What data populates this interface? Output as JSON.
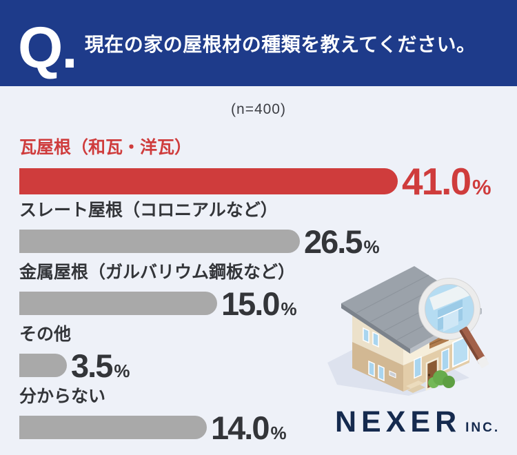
{
  "header": {
    "q_mark": "Q.",
    "question": "現在の家の屋根材の種類を教えてください。"
  },
  "survey": {
    "sample_size": "(n=400)"
  },
  "chart_data": {
    "type": "bar",
    "orientation": "horizontal",
    "title": "現在の家の屋根材の種類を教えてください。",
    "sample_size_label": "(n=400)",
    "n": 400,
    "unit": "%",
    "categories": [
      "瓦屋根（和瓦・洋瓦）",
      "スレート屋根（コロニアルなど）",
      "金属屋根（ガルバリウム鋼板など）",
      "その他",
      "分からない"
    ],
    "values": [
      41.0,
      26.5,
      15.0,
      3.5,
      14.0
    ],
    "value_labels": [
      "41.0",
      "26.5",
      "15.0",
      "3.5",
      "14.0"
    ],
    "bar_pixel_widths": [
      549,
      407,
      287,
      69,
      272
    ],
    "highlight_index": 0,
    "colors": {
      "highlight_bar": "#cf3c3c",
      "default_bar": "#a9a9a9",
      "label_text": "#333539",
      "header_background": "#1e3b8a",
      "page_background": "#eef1f8",
      "logo_navy": "#152a4e"
    },
    "legend": "none",
    "axes": "hidden"
  },
  "branding": {
    "company": "NEXER",
    "suffix": "INC."
  },
  "illustration": {
    "name": "house-with-magnifying-glass"
  }
}
